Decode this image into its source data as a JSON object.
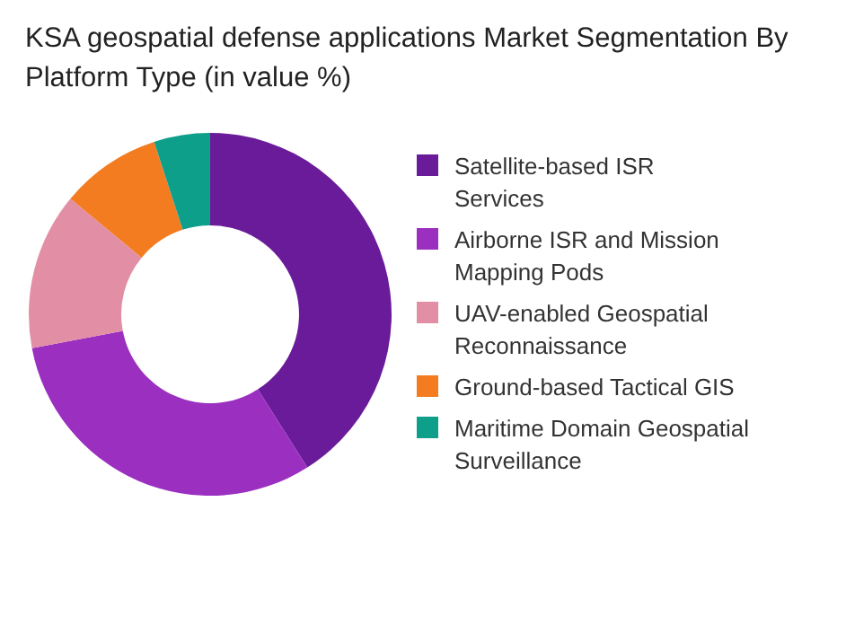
{
  "chart_data": {
    "type": "donut",
    "title": "KSA geospatial defense applications Market Segmentation By Platform Type (in value %)",
    "categories": [
      "Satellite-based ISR Services",
      "Airborne ISR and Mission Mapping Pods",
      "UAV-enabled Geospatial Reconnaissance",
      "Ground-based Tactical GIS",
      "Maritime Domain Geospatial Surveillance"
    ],
    "values": [
      41,
      31,
      14,
      9,
      5
    ],
    "colors": [
      "#6a1b9a",
      "#9b2fc0",
      "#e28fa6",
      "#f47c20",
      "#0e9f8b"
    ],
    "legend": "right"
  }
}
